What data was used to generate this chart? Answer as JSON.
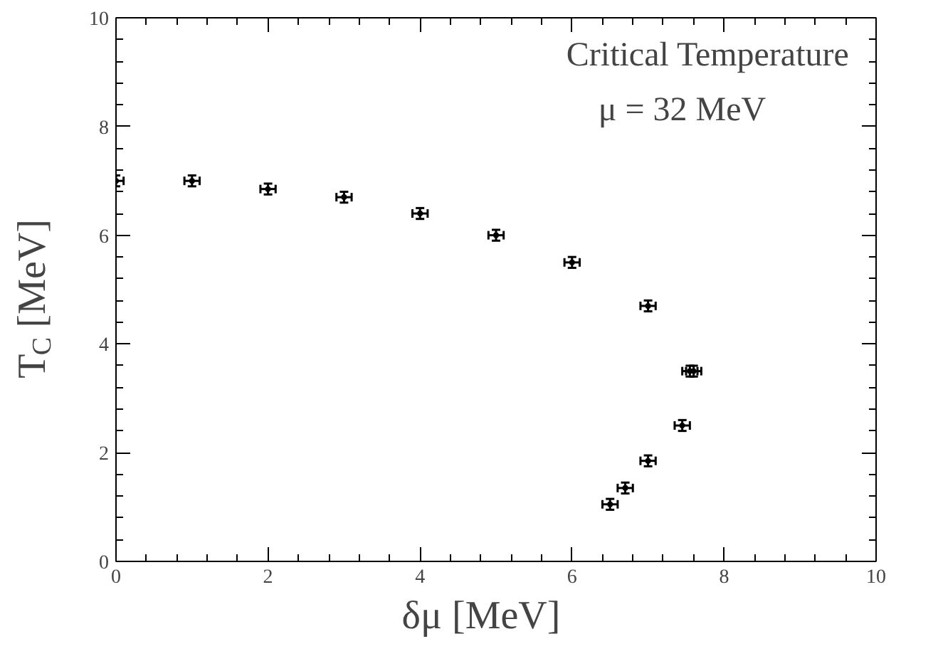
{
  "chart_data": {
    "type": "scatter",
    "title": "Critical Temperature",
    "subtitle": "μ = 32 MeV",
    "xlabel": "δμ    [MeV]",
    "ylabel": "T$_{C}$ [MeV]",
    "x": [
      0,
      1,
      2,
      3,
      4,
      5,
      6,
      7,
      7.55,
      7.6,
      7.45,
      7,
      6.7,
      6.5
    ],
    "values": [
      7.0,
      7.0,
      6.85,
      6.7,
      6.4,
      6.0,
      5.5,
      4.7,
      3.5,
      3.5,
      2.5,
      1.85,
      1.35,
      1.05
    ],
    "errors": [
      0.1,
      0.1,
      0.1,
      0.1,
      0.1,
      0.1,
      0.1,
      0.1,
      0.1,
      0.1,
      0.1,
      0.1,
      0.1,
      0.1
    ],
    "xerrors": [
      0.1,
      0.1,
      0.1,
      0.1,
      0.1,
      0.1,
      0.1,
      0.1,
      0.1,
      0.1,
      0.1,
      0.1,
      0.1,
      0.1
    ],
    "color": "#000000",
    "marker": "circle",
    "xlim": [
      0,
      10
    ],
    "ylim": [
      0,
      10
    ],
    "xticks": [
      0,
      2,
      4,
      6,
      8,
      10
    ],
    "yticks": [
      0,
      2,
      4,
      6,
      8,
      10
    ],
    "grid": false
  }
}
